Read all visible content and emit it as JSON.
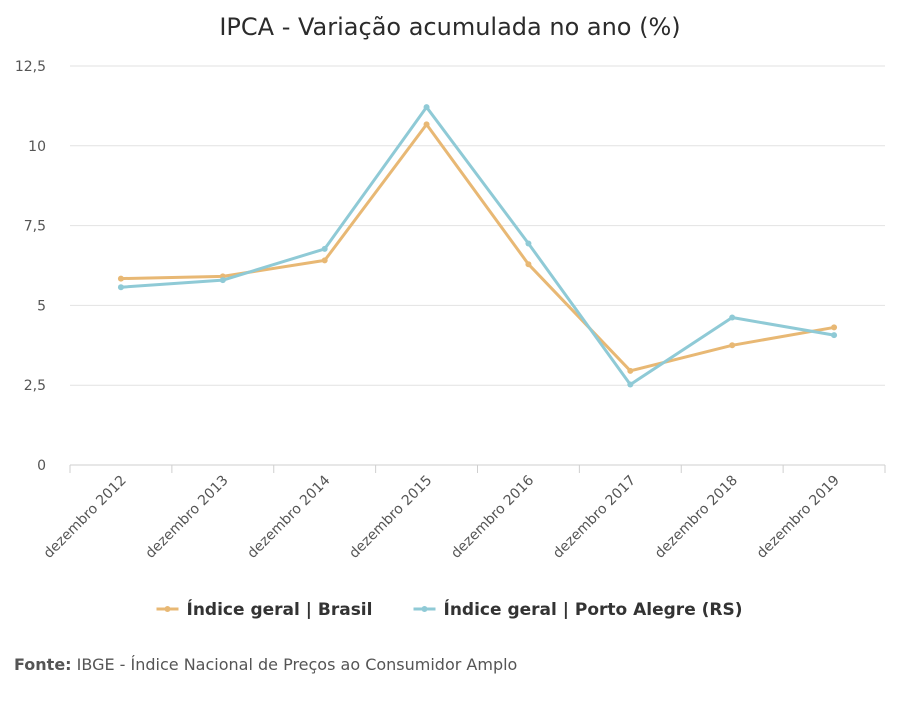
{
  "chart_data": {
    "type": "line",
    "title": "IPCA - Variação acumulada no ano (%)",
    "categories": [
      "dezembro 2012",
      "dezembro 2013",
      "dezembro 2014",
      "dezembro 2015",
      "dezembro 2016",
      "dezembro 2017",
      "dezembro 2018",
      "dezembro 2019"
    ],
    "yticks": [
      "0",
      "2,5",
      "5",
      "7,5",
      "10",
      "12,5"
    ],
    "ylim": [
      0,
      12.5
    ],
    "grid": true,
    "legend_position": "bottom",
    "series": [
      {
        "name": "Índice geral | Brasil",
        "color": "#e8b874",
        "values": [
          5.84,
          5.91,
          6.41,
          10.67,
          6.29,
          2.95,
          3.75,
          4.31
        ]
      },
      {
        "name": "Índice geral | Porto Alegre (RS)",
        "color": "#8fcad6",
        "values": [
          5.57,
          5.79,
          6.77,
          11.21,
          6.94,
          2.52,
          4.62,
          4.07
        ]
      }
    ]
  },
  "source": {
    "label": "Fonte:",
    "text": " IBGE - Índice Nacional de Preços ao Consumidor Amplo"
  }
}
